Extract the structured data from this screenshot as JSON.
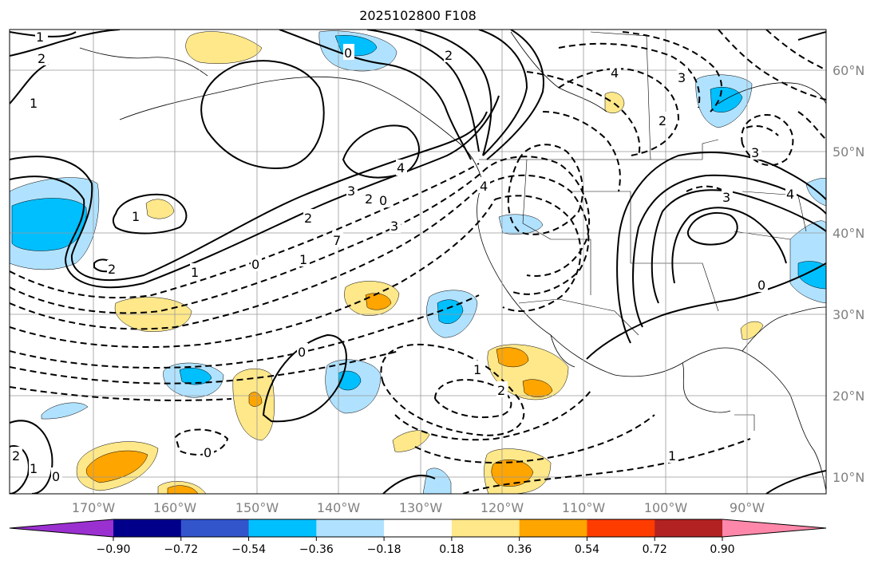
{
  "title": "2025102800 F108",
  "longitude_labels": [
    "170°W",
    "160°W",
    "150°W",
    "140°W",
    "130°W",
    "120°W",
    "110°W",
    "100°W",
    "90°W"
  ],
  "latitude_labels": [
    "60°N",
    "50°N",
    "40°N",
    "30°N",
    "20°N",
    "10°N"
  ],
  "colorbar": {
    "colors": [
      "#9b30d0",
      "#00008b",
      "#3355cc",
      "#00bfff",
      "#b0e2ff",
      "#ffffff",
      "#ffe88a",
      "#ffa500",
      "#ff3c00",
      "#b22222",
      "#ff88aa"
    ],
    "labels": [
      "−0.90",
      "−0.72",
      "−0.54",
      "−0.36",
      "−0.18",
      "0.18",
      "0.36",
      "0.54",
      "0.72",
      "0.90"
    ]
  },
  "shading_colors": {
    "neg_light": "#b0e2ff",
    "neg_mid": "#00bfff",
    "pos_light": "#ffe88a",
    "pos_mid": "#ffa500"
  },
  "contour_labels": [
    "1",
    "2",
    "1",
    "0",
    "4",
    "3",
    "2",
    "0",
    "1",
    "2",
    "4",
    "3",
    "1",
    "0",
    "1",
    "2",
    "7",
    "3",
    "4",
    "4",
    "2",
    "3",
    "2",
    "0",
    "1",
    "2",
    "0",
    "0",
    "1",
    "3",
    "2",
    "1",
    "0"
  ]
}
